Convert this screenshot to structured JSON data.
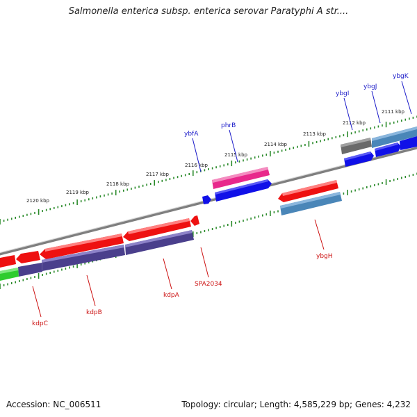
{
  "title": "Salmonella enterica subsp. enterica serovar Paratyphi A str....",
  "footer": {
    "accession": "Accession: NC_006511",
    "info": "Topology: circular; Length: 4,585,229 bp; Genes: 4,232"
  },
  "ruler_labels": [
    "2111 kbp",
    "2112 kbp",
    "2113 kbp",
    "2114 kbp",
    "2115 kbp",
    "2116 kbp",
    "2117 kbp",
    "2118 kbp",
    "2119 kbp",
    "2120 kbp"
  ],
  "genes_top": [
    "ybgK",
    "ybgJ",
    "ybgI",
    "phrB",
    "ybfA"
  ],
  "genes_bottom": [
    "ybgH",
    "SPA2034",
    "kdpA",
    "kdpB",
    "kdpC"
  ],
  "colors": {
    "backbone": "#8a8a8a",
    "ticks": "#2a8a2a",
    "red": "#ee1111",
    "blue": "#1010e8",
    "steelblue": "#4a86b8",
    "purple": "#4a3f8c",
    "magenta": "#e8288c",
    "gray": "#707070",
    "green": "#2ecc2e"
  }
}
